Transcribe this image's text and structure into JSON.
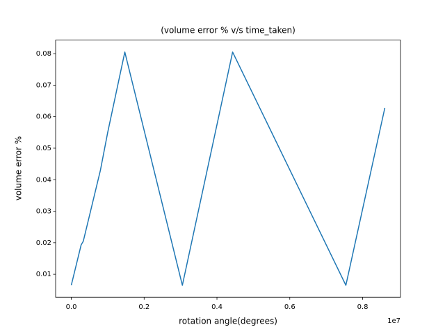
{
  "chart_data": {
    "type": "line",
    "title": "(volume error % v/s time_taken)",
    "x_label": "rotation angle(degrees)",
    "y_label": "volume error %",
    "x_offset_label": "1e7",
    "x": [
      0,
      0.027,
      0.033,
      0.08,
      0.1,
      0.147,
      0.305,
      0.443,
      0.754,
      0.861
    ],
    "series": [
      {
        "color": "#1f77b4",
        "values": [
          0.0065,
          0.0193,
          0.0205,
          0.043,
          0.055,
          0.0805,
          0.0065,
          0.0805,
          0.0065,
          0.0628
        ]
      }
    ],
    "xlim": [
      -0.043,
      0.904
    ],
    "ylim": [
      0.0027,
      0.0843
    ],
    "xticks": [
      {
        "value": 0,
        "label": "0.0"
      },
      {
        "value": 0.2,
        "label": "0.2"
      },
      {
        "value": 0.4,
        "label": "0.4"
      },
      {
        "value": 0.6,
        "label": "0.6"
      },
      {
        "value": 0.8,
        "label": "0.8"
      }
    ],
    "yticks": [
      0.01,
      0.02,
      0.03,
      0.04,
      0.05,
      0.06,
      0.07,
      0.08
    ],
    "grid": false
  }
}
